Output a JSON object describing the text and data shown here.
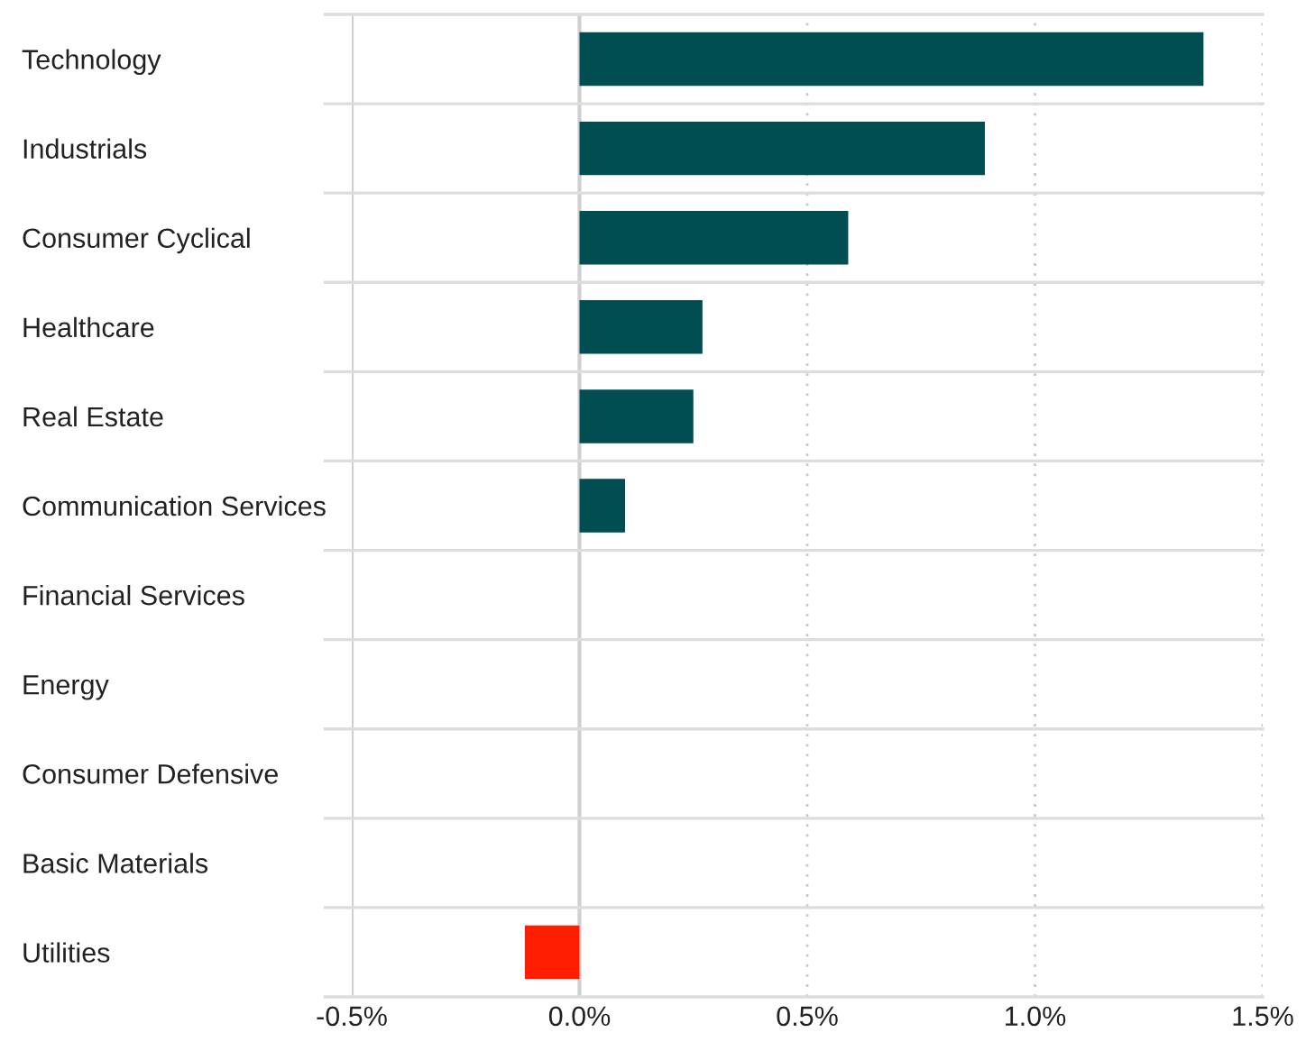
{
  "chart_data": {
    "type": "bar",
    "orientation": "horizontal",
    "categories": [
      "Technology",
      "Industrials",
      "Consumer Cyclical",
      "Healthcare",
      "Real Estate",
      "Communication Services",
      "Financial Services",
      "Energy",
      "Consumer Defensive",
      "Basic Materials",
      "Utilities"
    ],
    "values": [
      1.37,
      0.89,
      0.59,
      0.27,
      0.25,
      0.1,
      0,
      0,
      0,
      0,
      -0.12
    ],
    "colors": [
      "#004e52",
      "#004e52",
      "#004e52",
      "#004e52",
      "#004e52",
      "#004e52",
      "#004e52",
      "#004e52",
      "#004e52",
      "#004e52",
      "#ff1e00"
    ],
    "xlim": [
      -0.5,
      1.5
    ],
    "xticks": [
      {
        "value": -0.5,
        "label": "-0.5%"
      },
      {
        "value": 0,
        "label": "0.0%"
      },
      {
        "value": 0.5,
        "label": "0.5%"
      },
      {
        "value": 1.0,
        "label": "1.0%"
      },
      {
        "value": 1.5,
        "label": "1.5%"
      }
    ],
    "grid": true
  }
}
